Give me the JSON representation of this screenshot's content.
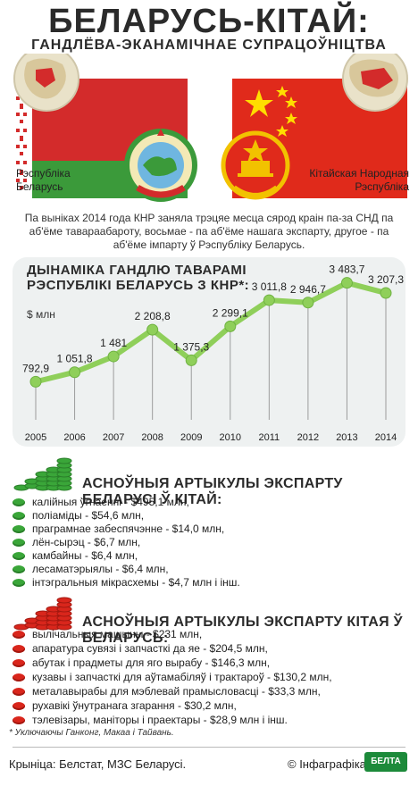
{
  "header": {
    "title": "БЕЛАРУСЬ-КІТАЙ:",
    "subtitle": "ГАНДЛЁВА-ЭКАНАМІЧНАЕ СУПРАЦОЎНІЦТВА"
  },
  "countries": {
    "left_line1": "Рэспубліка",
    "left_line2": "Беларусь",
    "right_line1": "Кітайская Народная",
    "right_line2": "Рэспубліка"
  },
  "intro": "Па выніках 2014 года КНР заняла трэцяе месца сярод краін па-за СНД па аб'ёме тавараабароту, восьмае - па аб'ёме нашага экспарту, другое - па аб'ёме імпарту ў Рэспубліку Беларусь.",
  "chart": {
    "title_line1": "ДЫНАМІКА ГАНДЛЮ ТАВАРАМІ",
    "title_line2": "РЭСПУБЛІКІ БЕЛАРУСЬ З КНР*:",
    "unit": "$ млн"
  },
  "chart_data": {
    "type": "line",
    "title": "ДЫНАМІКА ГАНДЛЮ ТАВАРАМІ РЭСПУБЛІКІ БЕЛАРУСЬ З КНР*:",
    "ylabel": "$ млн",
    "x": [
      "2005",
      "2006",
      "2007",
      "2008",
      "2009",
      "2010",
      "2011",
      "2012",
      "2013",
      "2014"
    ],
    "values": [
      792.9,
      1051.8,
      1481,
      2208.8,
      1375.3,
      2299.1,
      3011.8,
      2946.7,
      3483.7,
      3207.3
    ],
    "labels": [
      "792,9",
      "1 051,8",
      "1 481",
      "2 208,8",
      "1 375,3",
      "2 299,1",
      "3 011,8",
      "2 946,7",
      "3 483,7",
      "3 207,3"
    ],
    "ylim": [
      0,
      3500
    ],
    "color": "#8fcf5a"
  },
  "export_by": {
    "heading": "АСНОЎНЫЯ АРТЫКУЛЫ ЭКСПАРТУ БЕЛАРУСІ Ў КІТАЙ:",
    "items": [
      "калійныя ўгнаенні - $495,1 млн,",
      "поліаміды - $54,6 млн,",
      "праграмнае забеспячэнне - $14,0 млн,",
      "лён-сырэц - $6,7 млн,",
      "камбайны - $6,4 млн,",
      "лесаматэрыялы - $6,4 млн,",
      "інтэгральныя мікрасхемы - $4,7 млн і інш."
    ],
    "color": "#3aa639"
  },
  "export_cn": {
    "heading": "АСНОЎНЫЯ АРТЫКУЛЫ ЭКСПАРТУ КІТАЯ Ў БЕЛАРУСЬ:",
    "items": [
      "вылічальныя машыны - $231 млн,",
      "апаратура сувязі і запчасткі да яе - $204,5 млн,",
      "абутак і прадметы для яго вырабу - $146,3 млн,",
      "кузавы і запчасткі для аўтамабіляў і трактароў - $130,2 млн,",
      "металавырабы для мэблевай прамысловасці - $33,3 млн,",
      "рухавікі ўнутранага згарання - $30,2 млн,",
      "тэлевізары, маніторы і праектары - $28,9 млн і інш."
    ],
    "color": "#d9261c"
  },
  "footnote": "* Уключаючы Ганконг, Макаа і Тайвань.",
  "footer": {
    "source": "Крыніца: Белстат, МЗС Беларусі.",
    "copyright": "© Інфаграфіка",
    "logo": "БЕЛТА"
  }
}
